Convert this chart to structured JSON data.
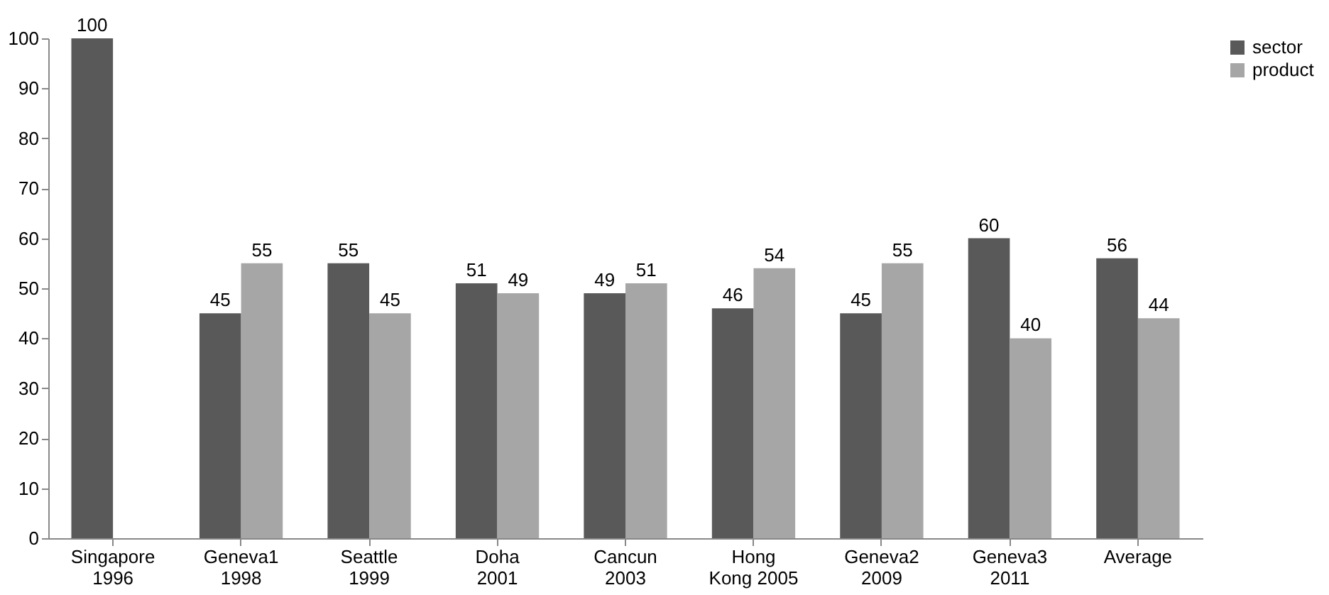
{
  "chart_data": {
    "type": "bar",
    "categories": [
      "Singapore\n1996",
      "Geneva1\n1998",
      "Seattle\n1999",
      "Doha\n2001",
      "Cancun\n2003",
      "Hong\nKong 2005",
      "Geneva2\n2009",
      "Geneva3\n2011",
      "Average"
    ],
    "series": [
      {
        "name": "sector",
        "color": "#595959",
        "values": [
          100,
          45,
          55,
          51,
          49,
          46,
          45,
          60,
          56
        ]
      },
      {
        "name": "product",
        "color": "#a6a6a6",
        "values": [
          null,
          55,
          45,
          49,
          51,
          54,
          55,
          40,
          44
        ]
      }
    ],
    "ylim": [
      0,
      100
    ],
    "yticks": [
      0,
      10,
      20,
      30,
      40,
      50,
      60,
      70,
      80,
      90,
      100
    ],
    "data_labels": true,
    "grid": false,
    "legend": "right"
  }
}
